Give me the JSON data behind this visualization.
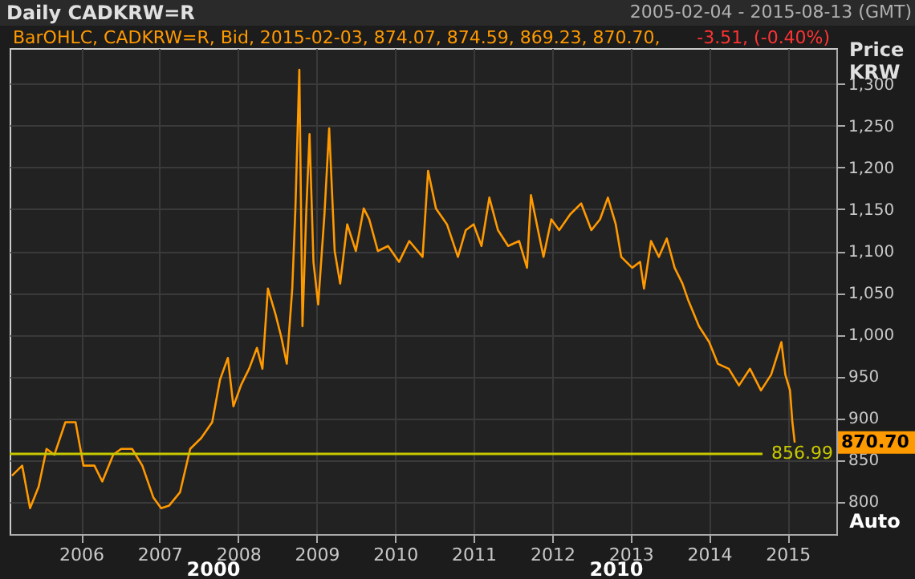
{
  "chart_data": {
    "type": "line",
    "annotations": [
      "Daily CADKRW=R",
      "2005-02-04 - 2015-08-13 (GMT)",
      "BarOHLC, CADKRW=R, Bid, 2015-02-03, 874.07, 874.59, 869.23, 870.70,",
      "-3.51, (-0.40%)",
      "870.70",
      "Auto",
      "2000",
      "2010"
    ],
    "ylabel": "Price KRW",
    "x": [
      2005.12,
      2005.25,
      2005.35,
      2005.46,
      2005.56,
      2005.66,
      2005.8,
      2005.93,
      2006.03,
      2006.17,
      2006.27,
      2006.41,
      2006.51,
      2006.65,
      2006.78,
      2006.92,
      2007.02,
      2007.12,
      2007.26,
      2007.39,
      2007.53,
      2007.67,
      2007.77,
      2007.87,
      2007.94,
      2008.04,
      2008.14,
      2008.24,
      2008.31,
      2008.38,
      2008.48,
      2008.55,
      2008.62,
      2008.69,
      2008.73,
      2008.78,
      2008.82,
      2008.87,
      2008.91,
      2008.96,
      2009.02,
      2009.1,
      2009.16,
      2009.23,
      2009.3,
      2009.39,
      2009.5,
      2009.6,
      2009.67,
      2009.78,
      2009.91,
      2010.05,
      2010.18,
      2010.35,
      2010.42,
      2010.52,
      2010.66,
      2010.8,
      2010.9,
      2011.0,
      2011.1,
      2011.2,
      2011.31,
      2011.44,
      2011.58,
      2011.68,
      2011.73,
      2011.82,
      2011.89,
      2011.99,
      2012.09,
      2012.23,
      2012.37,
      2012.5,
      2012.61,
      2012.71,
      2012.81,
      2012.88,
      2013.02,
      2013.12,
      2013.17,
      2013.26,
      2013.36,
      2013.46,
      2013.56,
      2013.66,
      2013.73,
      2013.87,
      2014.0,
      2014.11,
      2014.25,
      2014.38,
      2014.52,
      2014.66,
      2014.79,
      2014.92,
      2014.97,
      2015.03,
      2015.06,
      2015.09
    ],
    "series": [
      {
        "color": "#ff9900",
        "values": [
          831,
          843,
          792,
          818,
          863,
          856,
          895,
          895,
          843,
          843,
          824,
          856,
          863,
          863,
          843,
          805,
          792,
          795,
          811,
          863,
          876,
          895,
          946,
          972,
          914,
          940,
          959,
          984,
          959,
          1055,
          1023,
          997,
          965,
          1055,
          1151,
          1317,
          1010,
          1151,
          1240,
          1087,
          1036,
          1144,
          1247,
          1100,
          1061,
          1132,
          1100,
          1151,
          1138,
          1100,
          1106,
          1087,
          1112,
          1093,
          1196,
          1151,
          1132,
          1093,
          1125,
          1132,
          1106,
          1164,
          1125,
          1106,
          1112,
          1080,
          1167,
          1125,
          1093,
          1138,
          1125,
          1144,
          1157,
          1125,
          1138,
          1164,
          1132,
          1093,
          1080,
          1087,
          1055,
          1112,
          1093,
          1115,
          1080,
          1061,
          1042,
          1010,
          991,
          965,
          959,
          939,
          959,
          933,
          952,
          991,
          952,
          933,
          895,
          870.7
        ]
      }
    ],
    "xlim": [
      2005.09,
      2015.62
    ],
    "xticks": [
      2006,
      2007,
      2008,
      2009,
      2010,
      2011,
      2012,
      2013,
      2014,
      2015
    ],
    "ylim": [
      761,
      1343
    ],
    "yticks": [
      800,
      850,
      900,
      950,
      {
        "value": 1000,
        "label": "1,000"
      },
      {
        "value": 1050,
        "label": "1,050"
      },
      {
        "value": 1100,
        "label": "1,100"
      },
      {
        "value": 1150,
        "label": "1,150"
      },
      {
        "value": 1200,
        "label": "1,200"
      },
      {
        "value": 1250,
        "label": "1,250"
      },
      {
        "value": 1300,
        "label": "1,300"
      }
    ],
    "ref_lines": [
      {
        "axis": "y",
        "value": 856.99,
        "label": "856.99",
        "color": "#c8c800"
      }
    ],
    "grid": true,
    "line_style": "solid",
    "marker": "none"
  }
}
